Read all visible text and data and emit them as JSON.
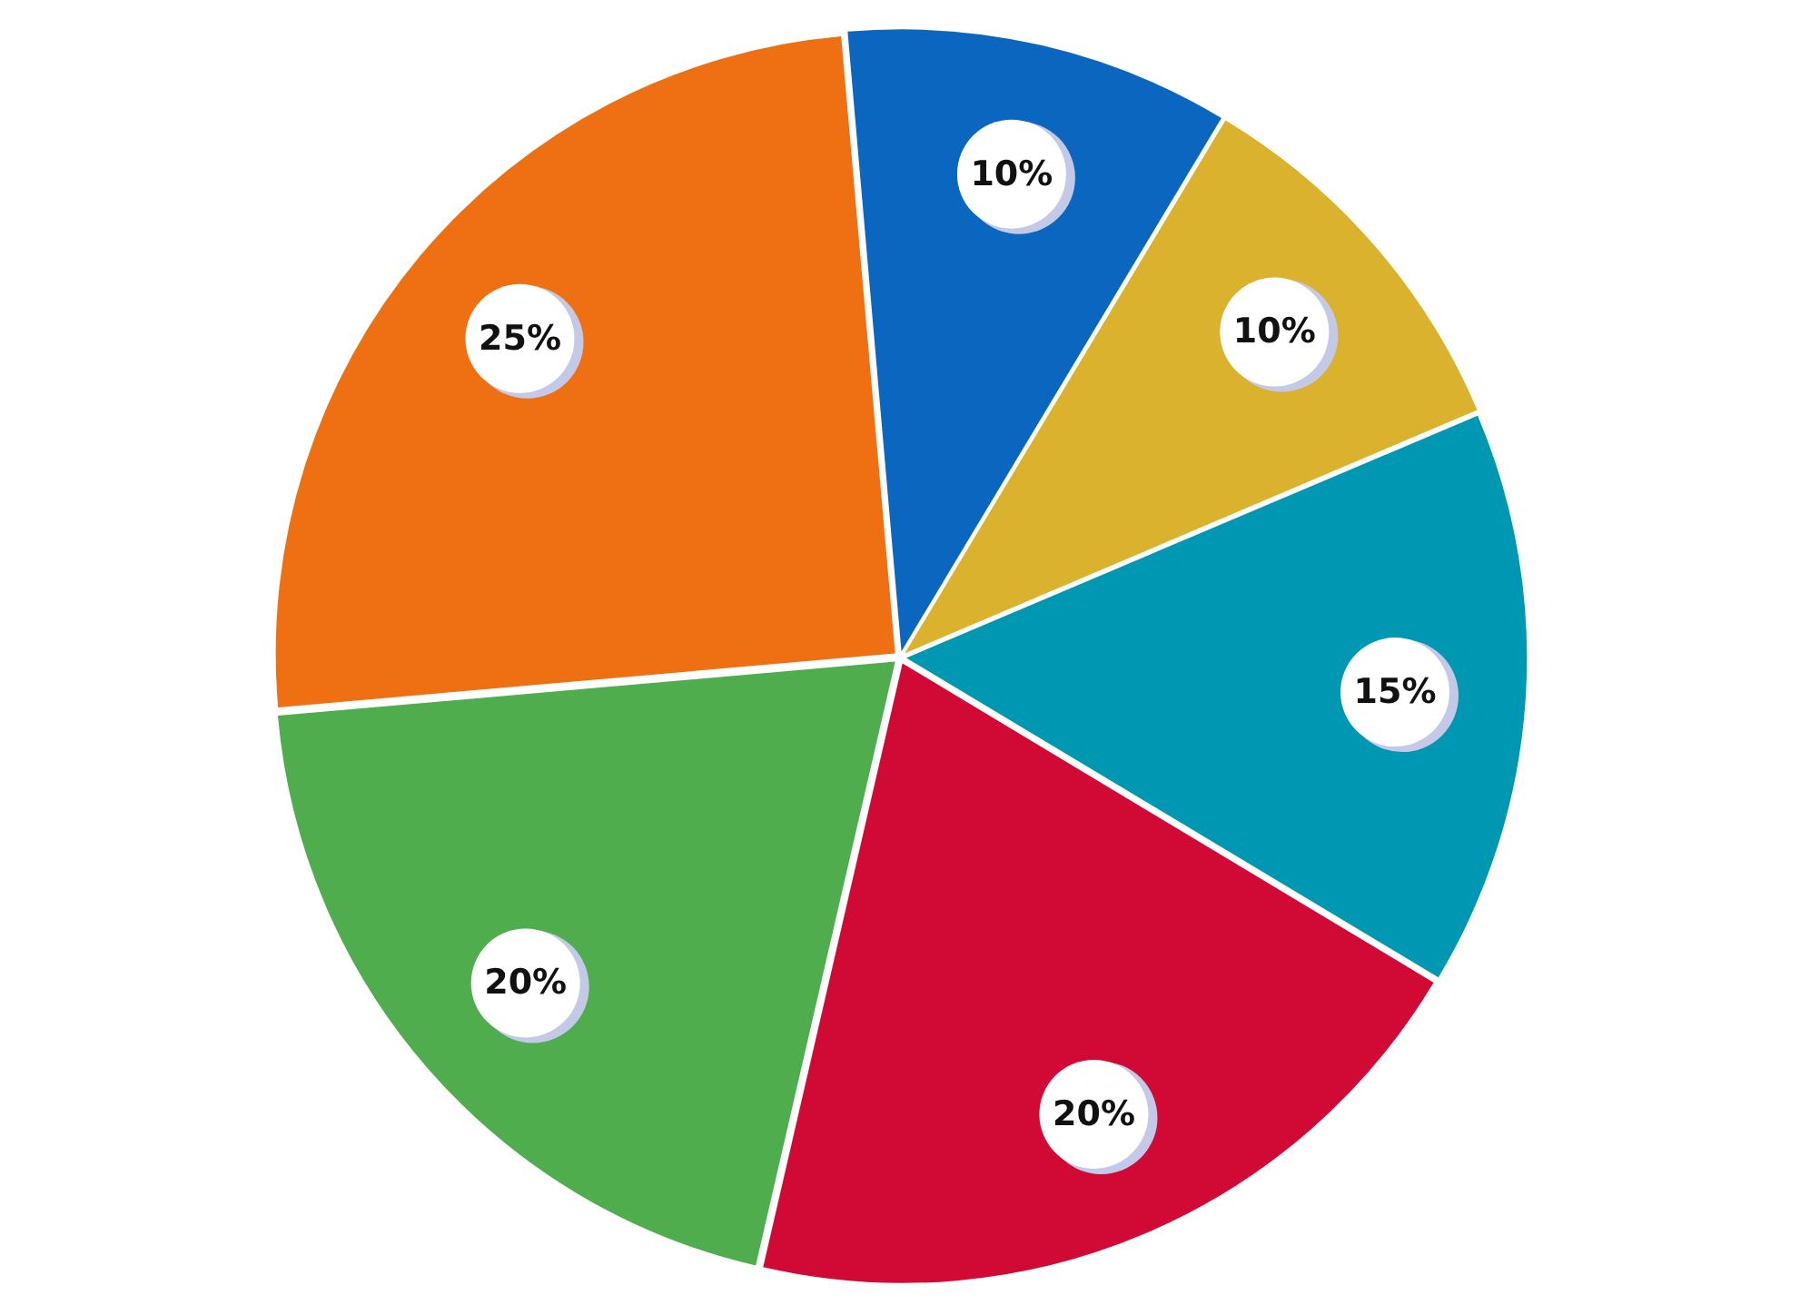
{
  "chart_data": {
    "type": "pie",
    "categories": [
      null,
      null,
      null,
      null,
      null,
      null
    ],
    "values": [
      10,
      10,
      15,
      20,
      20,
      25
    ],
    "colors": [
      "#0a66bf",
      "#dab22e",
      "#0097b2",
      "#d10a35",
      "#4fad4d",
      "#ee7012"
    ],
    "value_labels": [
      "10%",
      "10%",
      "15%",
      "20%",
      "20%",
      "25%"
    ],
    "legend": false
  }
}
